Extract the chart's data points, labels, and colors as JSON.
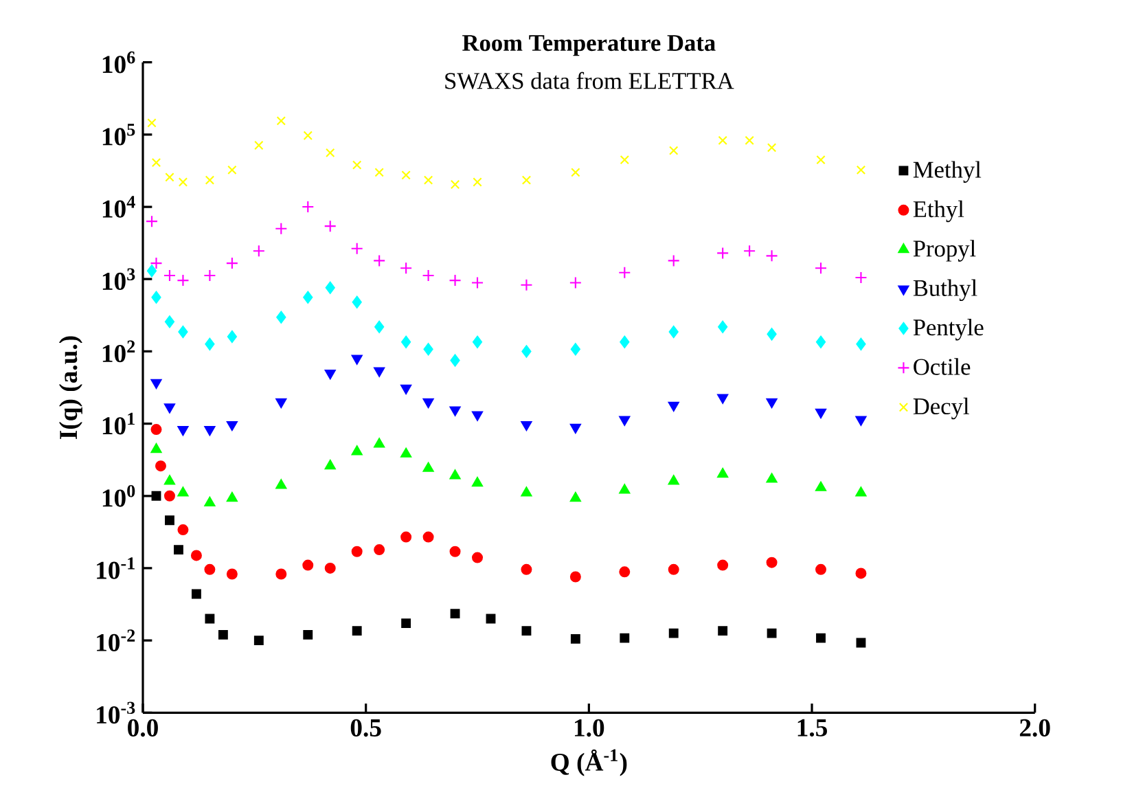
{
  "chart_data": {
    "type": "scatter",
    "title": "Room Temperature Data",
    "subtitle": "SWAXS data from ELETTRA",
    "xlabel": "Q (Å$^{-1}$)",
    "ylabel": "I(q) (a.u.)",
    "log": "y",
    "xlim": [
      0,
      2
    ],
    "ylim": [
      0.001,
      1000000
    ],
    "xticks": [
      {
        "value": 0,
        "label": "0.0"
      },
      {
        "value": 0.5,
        "label": "0.5"
      },
      {
        "value": 1,
        "label": "1.0"
      },
      {
        "value": 1.5,
        "label": "1.5"
      },
      {
        "value": 2,
        "label": "2.0"
      }
    ],
    "yticks": [
      {
        "value": 0.001,
        "label": "10$^{-3}$"
      },
      {
        "value": 0.01,
        "label": "10$^{-2}$"
      },
      {
        "value": 0.1,
        "label": "10$^{-1}$"
      },
      {
        "value": 1,
        "label": "10$^{0}$"
      },
      {
        "value": 10,
        "label": "10$^{1}$"
      },
      {
        "value": 100,
        "label": "10$^{2}$"
      },
      {
        "value": 1000,
        "label": "10$^{3}$"
      },
      {
        "value": 10000,
        "label": "10$^{4}$"
      },
      {
        "value": 100000,
        "label": "10$^{5}$"
      },
      {
        "value": 1000000,
        "label": "10$^{6}$"
      }
    ],
    "legend": "right",
    "grid": false,
    "series": [
      {
        "name": "Methyl",
        "color": "#000000",
        "marker": "square",
        "x": [
          0.03,
          0.06,
          0.08,
          0.12,
          0.15,
          0.18,
          0.26,
          0.37,
          0.48,
          0.59,
          0.7,
          0.78,
          0.86,
          0.97,
          1.08,
          1.19,
          1.3,
          1.41,
          1.52,
          1.61
        ],
        "values": [
          1.0,
          0.46,
          0.18,
          0.044,
          0.02,
          0.012,
          0.01,
          0.012,
          0.0136,
          0.0173,
          0.0235,
          0.02,
          0.0136,
          0.0105,
          0.0108,
          0.0126,
          0.0136,
          0.0126,
          0.0108,
          0.0093
        ]
      },
      {
        "name": "Ethyl",
        "color": "#ff0000",
        "marker": "circle",
        "x": [
          0.03,
          0.04,
          0.06,
          0.09,
          0.12,
          0.15,
          0.2,
          0.31,
          0.37,
          0.42,
          0.48,
          0.53,
          0.59,
          0.64,
          0.7,
          0.75,
          0.86,
          0.97,
          1.08,
          1.19,
          1.3,
          1.41,
          1.52,
          1.61
        ],
        "values": [
          8.3,
          2.6,
          1.0,
          0.34,
          0.15,
          0.096,
          0.083,
          0.083,
          0.11,
          0.1,
          0.17,
          0.18,
          0.27,
          0.27,
          0.17,
          0.14,
          0.096,
          0.076,
          0.089,
          0.096,
          0.11,
          0.12,
          0.096,
          0.085
        ]
      },
      {
        "name": "Propyl",
        "color": "#00ff00",
        "marker": "triangle",
        "x": [
          0.03,
          0.06,
          0.09,
          0.15,
          0.2,
          0.31,
          0.42,
          0.48,
          0.53,
          0.59,
          0.64,
          0.7,
          0.75,
          0.86,
          0.97,
          1.08,
          1.19,
          1.3,
          1.41,
          1.52,
          1.61
        ],
        "values": [
          4.4,
          1.6,
          1.1,
          0.8,
          0.93,
          1.4,
          2.6,
          4.1,
          5.2,
          3.8,
          2.4,
          1.9,
          1.5,
          1.1,
          0.93,
          1.2,
          1.6,
          2.0,
          1.7,
          1.3,
          1.1
        ]
      },
      {
        "name": "Buthyl",
        "color": "#0000ff",
        "marker": "triangle-down",
        "x": [
          0.03,
          0.06,
          0.09,
          0.15,
          0.2,
          0.31,
          0.42,
          0.48,
          0.53,
          0.59,
          0.64,
          0.7,
          0.75,
          0.86,
          0.97,
          1.08,
          1.19,
          1.3,
          1.41,
          1.52,
          1.61
        ],
        "values": [
          37,
          17,
          8.3,
          8.3,
          9.7,
          20,
          50,
          80,
          54,
          31,
          20,
          15.5,
          13.3,
          9.7,
          8.9,
          11.4,
          18,
          23,
          20,
          14.4,
          11.4
        ]
      },
      {
        "name": "Pentyle",
        "color": "#00ffff",
        "marker": "diamond",
        "x": [
          0.02,
          0.03,
          0.06,
          0.09,
          0.15,
          0.2,
          0.31,
          0.37,
          0.42,
          0.48,
          0.53,
          0.59,
          0.64,
          0.7,
          0.75,
          0.86,
          0.97,
          1.08,
          1.19,
          1.3,
          1.41,
          1.52,
          1.61
        ],
        "values": [
          1300,
          560,
          257,
          186,
          126,
          160,
          297,
          560,
          760,
          480,
          218,
          135,
          107,
          75,
          135,
          100,
          107,
          135,
          186,
          218,
          173,
          135,
          126
        ]
      },
      {
        "name": "Octile",
        "color": "#ff00ff",
        "marker": "plus",
        "x": [
          0.02,
          0.03,
          0.06,
          0.09,
          0.15,
          0.2,
          0.26,
          0.31,
          0.37,
          0.42,
          0.48,
          0.53,
          0.59,
          0.64,
          0.7,
          0.75,
          0.86,
          0.97,
          1.08,
          1.19,
          1.3,
          1.36,
          1.41,
          1.52,
          1.61
        ],
        "values": [
          6300,
          1660,
          1120,
          960,
          1120,
          1660,
          2450,
          5000,
          10000,
          5400,
          2650,
          1800,
          1420,
          1120,
          960,
          890,
          830,
          890,
          1230,
          1800,
          2290,
          2450,
          2100,
          1420,
          1050
        ]
      },
      {
        "name": "Decyl",
        "color": "#ffff00",
        "marker": "cross",
        "x": [
          0.02,
          0.03,
          0.06,
          0.09,
          0.15,
          0.2,
          0.26,
          0.31,
          0.37,
          0.42,
          0.48,
          0.53,
          0.59,
          0.64,
          0.7,
          0.75,
          0.86,
          0.97,
          1.08,
          1.19,
          1.3,
          1.36,
          1.41,
          1.52,
          1.61
        ],
        "values": [
          145000,
          41000,
          25700,
          22000,
          23400,
          32400,
          71000,
          155000,
          97000,
          56000,
          38000,
          30000,
          27500,
          23400,
          20400,
          22000,
          23400,
          30000,
          44700,
          60000,
          83000,
          83000,
          66000,
          44700,
          32400
        ]
      }
    ]
  }
}
